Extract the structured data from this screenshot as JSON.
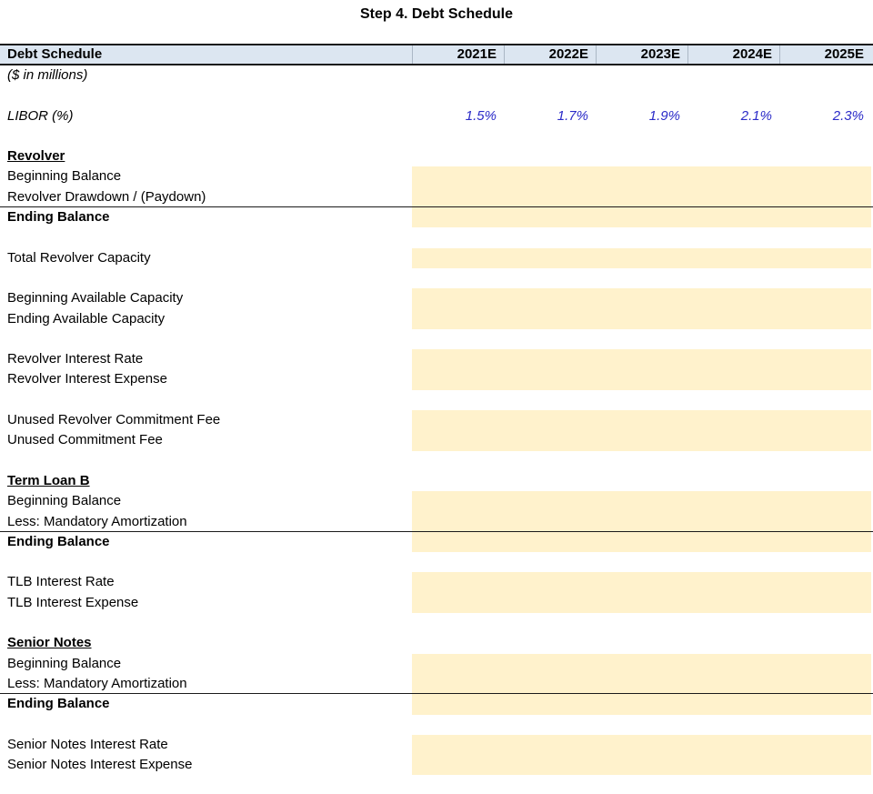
{
  "title": "Step 4. Debt Schedule",
  "header": {
    "title": "Debt Schedule",
    "years": [
      "2021E",
      "2022E",
      "2023E",
      "2024E",
      "2025E"
    ]
  },
  "units_note": "($ in millions)",
  "libor": {
    "label": "LIBOR (%)",
    "values": [
      "1.5%",
      "1.7%",
      "1.9%",
      "2.1%",
      "2.3%"
    ]
  },
  "sections": [
    {
      "heading": "Revolver",
      "rows": [
        {
          "label": "Beginning Balance"
        },
        {
          "label": "Revolver Drawdown / (Paydown)"
        },
        {
          "label": "Ending Balance"
        },
        {
          "label": "Total Revolver Capacity"
        },
        {
          "label": "Beginning Available Capacity"
        },
        {
          "label": "Ending Available Capacity"
        },
        {
          "label": "Revolver Interest Rate"
        },
        {
          "label": "Revolver Interest Expense"
        },
        {
          "label": "Unused Revolver Commitment Fee"
        },
        {
          "label": "Unused Commitment Fee"
        }
      ]
    },
    {
      "heading": "Term Loan B",
      "rows": [
        {
          "label": "Beginning Balance"
        },
        {
          "label": "Less: Mandatory Amortization"
        },
        {
          "label": "Ending Balance"
        },
        {
          "label": "TLB Interest Rate"
        },
        {
          "label": "TLB Interest Expense"
        }
      ]
    },
    {
      "heading": "Senior Notes",
      "rows": [
        {
          "label": "Beginning Balance"
        },
        {
          "label": "Less: Mandatory Amortization"
        },
        {
          "label": "Ending Balance"
        },
        {
          "label": "Senior Notes Interest Rate"
        },
        {
          "label": "Senior Notes Interest Expense"
        }
      ]
    }
  ],
  "colors": {
    "header_fill": "#DCE6F1",
    "input_fill": "#FFF2CC",
    "assumption_text": "#2B2BC8",
    "rule": "#1A1A1A"
  }
}
